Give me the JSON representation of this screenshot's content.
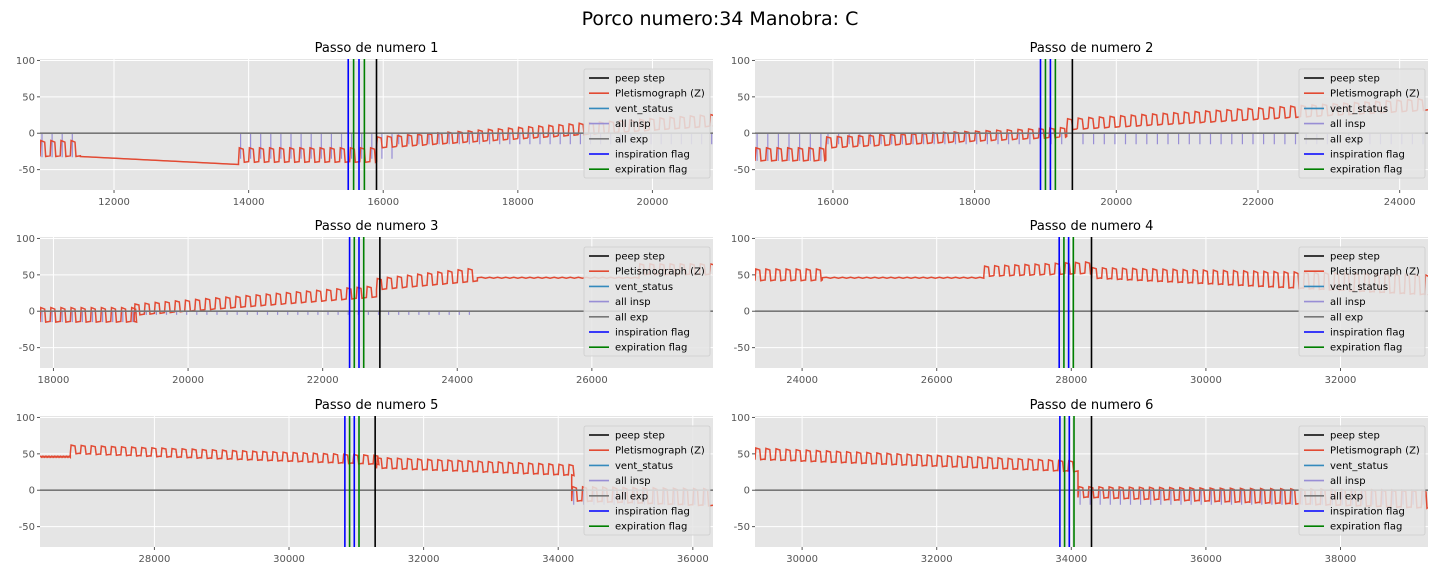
{
  "suptitle": "Porco numero:34 Manobra: C",
  "colors": {
    "peep_step": "#000000",
    "pletismograph": "#e24a33",
    "vent_status": "#348abd",
    "all_insp": "#988ed5",
    "all_exp": "#777777",
    "inspiration_flag": "#0000ff",
    "expiration_flag": "#008000",
    "axes_bg": "#e5e5e5",
    "grid": "#ffffff"
  },
  "legend": [
    "peep step",
    "Pletismograph (Z)",
    "vent_status",
    "all insp",
    "all exp",
    "inspiration flag",
    "expiration flag"
  ],
  "chart_data": [
    {
      "type": "line",
      "title": "Passo de numero 1",
      "legend_position": "right",
      "xlim": [
        10900,
        20900
      ],
      "ylim": [
        -78,
        102
      ],
      "xticks": [
        12000,
        14000,
        16000,
        18000,
        20000
      ],
      "yticks": [
        100,
        50,
        0,
        -50
      ],
      "peep_step_x": 15900,
      "inspiration_flag_x": [
        15480,
        15640
      ],
      "expiration_flag_x": [
        15560,
        15720
      ],
      "series": [
        {
          "name": "Pletismograph (Z)",
          "segments": [
            {
              "x0": 10900,
              "x1": 11500,
              "kind": "cycles",
              "high": -10,
              "low": -32
            },
            {
              "x0": 11500,
              "x1": 13850,
              "kind": "ramp",
              "from": -32,
              "to": -43
            },
            {
              "x0": 13850,
              "x1": 15900,
              "kind": "cycles",
              "high": -20,
              "low": -40
            },
            {
              "x0": 15900,
              "x1": 20900,
              "kind": "cycles",
              "high": [
                -5,
                26
              ],
              "low": [
                -20,
                10
              ]
            }
          ]
        },
        {
          "name": "all insp",
          "segments": [
            {
              "x0": 10900,
              "x1": 11500,
              "kind": "spikes",
              "low": -33
            },
            {
              "x0": 13850,
              "x1": 16200,
              "kind": "spikes",
              "low": -35
            },
            {
              "x0": 16200,
              "x1": 20900,
              "kind": "spikes",
              "low": -15
            }
          ]
        }
      ]
    },
    {
      "type": "line",
      "title": "Passo de numero 2",
      "legend_position": "right",
      "xlim": [
        14900,
        24400
      ],
      "ylim": [
        -78,
        102
      ],
      "xticks": [
        16000,
        18000,
        20000,
        22000,
        24000
      ],
      "yticks": [
        100,
        50,
        0,
        -50
      ],
      "peep_step_x": 19380,
      "inspiration_flag_x": [
        18930,
        19070
      ],
      "expiration_flag_x": [
        19000,
        19140
      ],
      "series": [
        {
          "name": "Pletismograph (Z)",
          "segments": [
            {
              "x0": 14900,
              "x1": 15900,
              "kind": "cycles",
              "high": -20,
              "low": -38
            },
            {
              "x0": 15900,
              "x1": 19300,
              "kind": "cycles",
              "high": [
                -5,
                8
              ],
              "low": [
                -20,
                -5
              ]
            },
            {
              "x0": 19300,
              "x1": 24400,
              "kind": "cycles",
              "high": [
                20,
                48
              ],
              "low": [
                5,
                32
              ]
            }
          ]
        },
        {
          "name": "all insp",
          "segments": [
            {
              "x0": 14900,
              "x1": 15900,
              "kind": "spikes",
              "low": -38
            },
            {
              "x0": 15900,
              "x1": 24400,
              "kind": "spikes",
              "low": -15
            }
          ]
        }
      ]
    },
    {
      "type": "line",
      "title": "Passo de numero 3",
      "legend_position": "right",
      "xlim": [
        17800,
        27800
      ],
      "ylim": [
        -78,
        102
      ],
      "xticks": [
        18000,
        20000,
        22000,
        24000,
        26000
      ],
      "yticks": [
        100,
        50,
        0,
        -50
      ],
      "peep_step_x": 22850,
      "inspiration_flag_x": [
        22400,
        22540
      ],
      "expiration_flag_x": [
        22470,
        22610
      ],
      "series": [
        {
          "name": "Pletismograph (Z)",
          "segments": [
            {
              "x0": 17800,
              "x1": 19200,
              "kind": "cycles",
              "high": 5,
              "low": -15
            },
            {
              "x0": 19200,
              "x1": 22800,
              "kind": "cycles",
              "high": [
                10,
                35
              ],
              "low": [
                -5,
                20
              ]
            },
            {
              "x0": 22800,
              "x1": 24300,
              "kind": "cycles",
              "high": [
                45,
                60
              ],
              "low": [
                30,
                42
              ]
            },
            {
              "x0": 24300,
              "x1": 26700,
              "kind": "flat",
              "value": 46
            },
            {
              "x0": 26700,
              "x1": 27800,
              "kind": "cycles",
              "high": 65,
              "low": 50
            }
          ]
        },
        {
          "name": "all insp",
          "segments": [
            {
              "x0": 17800,
              "x1": 19200,
              "kind": "spikes",
              "low": -15
            },
            {
              "x0": 19200,
              "x1": 24300,
              "kind": "spikes",
              "low": -5
            },
            {
              "x0": 26700,
              "x1": 27800,
              "kind": "spikes",
              "low": 0
            }
          ]
        }
      ]
    },
    {
      "type": "line",
      "title": "Passo de numero 4",
      "legend_position": "right",
      "xlim": [
        23300,
        33300
      ],
      "ylim": [
        -78,
        102
      ],
      "xticks": [
        24000,
        26000,
        28000,
        30000,
        32000
      ],
      "yticks": [
        100,
        50,
        0,
        -50
      ],
      "peep_step_x": 28300,
      "inspiration_flag_x": [
        27820,
        27960
      ],
      "expiration_flag_x": [
        27890,
        28030
      ],
      "series": [
        {
          "name": "Pletismograph (Z)",
          "segments": [
            {
              "x0": 23300,
              "x1": 24300,
              "kind": "cycles",
              "high": 58,
              "low": 42
            },
            {
              "x0": 24300,
              "x1": 26700,
              "kind": "flat",
              "value": 46
            },
            {
              "x0": 26700,
              "x1": 28300,
              "kind": "cycles",
              "high": [
                62,
                68
              ],
              "low": [
                48,
                52
              ]
            },
            {
              "x0": 28300,
              "x1": 33300,
              "kind": "cycles",
              "high": [
                60,
                50
              ],
              "low": [
                45,
                22
              ]
            }
          ]
        },
        {
          "name": "all insp",
          "segments": [
            {
              "x0": 23300,
              "x1": 24300,
              "kind": "spikes",
              "low": 0
            },
            {
              "x0": 26700,
              "x1": 33300,
              "kind": "spikes",
              "low": 0
            }
          ]
        }
      ]
    },
    {
      "type": "line",
      "title": "Passo de numero 5",
      "legend_position": "right",
      "xlim": [
        26300,
        36300
      ],
      "ylim": [
        -78,
        102
      ],
      "xticks": [
        28000,
        30000,
        32000,
        34000,
        36000
      ],
      "yticks": [
        100,
        50,
        0,
        -50
      ],
      "peep_step_x": 31280,
      "inspiration_flag_x": [
        30830,
        30970
      ],
      "expiration_flag_x": [
        30900,
        31040
      ],
      "series": [
        {
          "name": "Pletismograph (Z)",
          "segments": [
            {
              "x0": 26300,
              "x1": 26750,
              "kind": "flat",
              "value": 46
            },
            {
              "x0": 26750,
              "x1": 31300,
              "kind": "cycles",
              "high": [
                62,
                48
              ],
              "low": [
                50,
                35
              ]
            },
            {
              "x0": 31300,
              "x1": 34200,
              "kind": "cycles",
              "high": [
                45,
                35
              ],
              "low": [
                30,
                20
              ]
            },
            {
              "x0": 34200,
              "x1": 36300,
              "kind": "cycles",
              "high": [
                5,
                2
              ],
              "low": [
                -15,
                -22
              ]
            }
          ]
        },
        {
          "name": "all insp",
          "segments": [
            {
              "x0": 26750,
              "x1": 34200,
              "kind": "spikes",
              "low": 0
            },
            {
              "x0": 34200,
              "x1": 36300,
              "kind": "spikes",
              "low": -20
            }
          ]
        }
      ]
    },
    {
      "type": "line",
      "title": "Passo de numero 6",
      "legend_position": "right",
      "xlim": [
        29300,
        39300
      ],
      "ylim": [
        -78,
        102
      ],
      "xticks": [
        30000,
        32000,
        34000,
        36000,
        38000
      ],
      "yticks": [
        100,
        50,
        0,
        -50
      ],
      "peep_step_x": 34300,
      "inspiration_flag_x": [
        33830,
        33970
      ],
      "expiration_flag_x": [
        33900,
        34040
      ],
      "series": [
        {
          "name": "Pletismograph (Z)",
          "segments": [
            {
              "x0": 29300,
              "x1": 34100,
              "kind": "cycles",
              "high": [
                58,
                40
              ],
              "low": [
                42,
                25
              ]
            },
            {
              "x0": 34100,
              "x1": 39300,
              "kind": "cycles",
              "high": [
                5,
                0
              ],
              "low": [
                -10,
                -25
              ]
            }
          ]
        },
        {
          "name": "all insp",
          "segments": [
            {
              "x0": 29300,
              "x1": 34100,
              "kind": "spikes",
              "low": 0
            },
            {
              "x0": 34100,
              "x1": 39300,
              "kind": "spikes",
              "low": -20
            }
          ]
        }
      ]
    }
  ]
}
